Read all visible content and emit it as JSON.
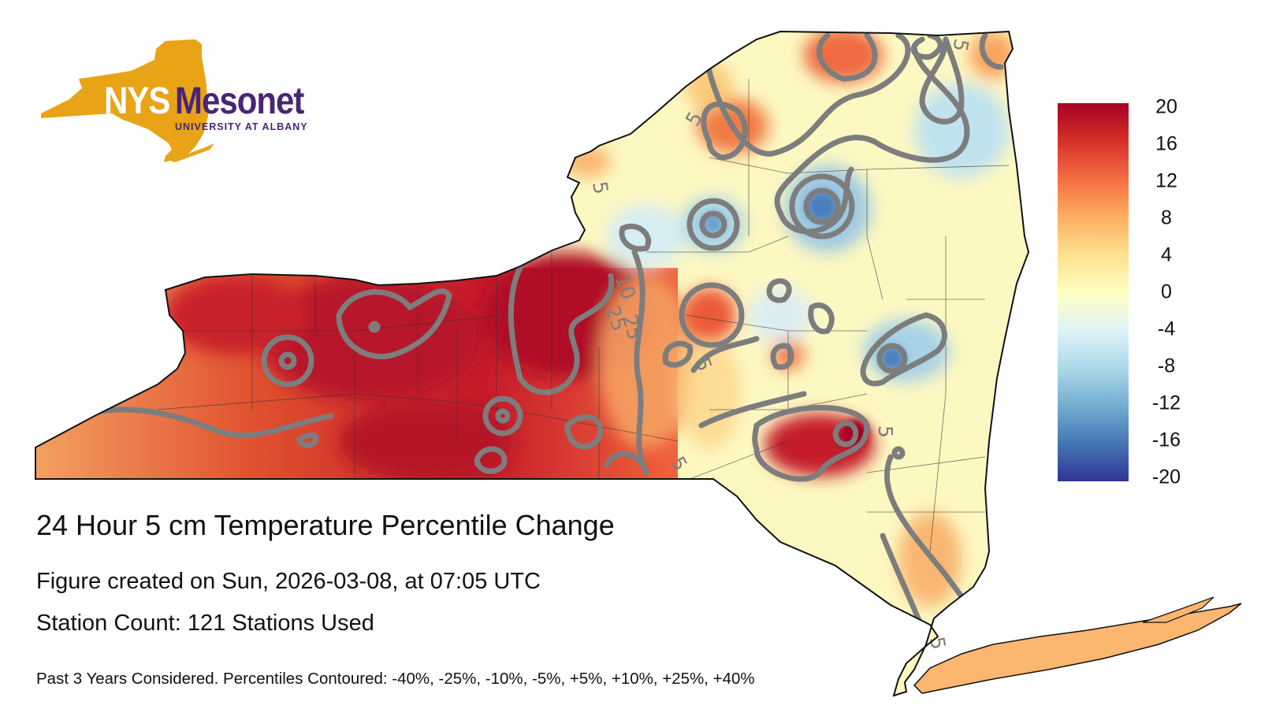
{
  "logo": {
    "nys_text": "NYS",
    "brand_text": "Mesonet",
    "subtitle": "UNIVERSITY AT ALBANY",
    "state_color": "#e8a317",
    "brand_color": "#4a2574"
  },
  "figure": {
    "title": "24 Hour 5 cm Temperature Percentile Change",
    "created": "Figure created on Sun, 2026-03-08, at 07:05 UTC",
    "station_count": "Station Count: 121 Stations Used",
    "footnote": "Past 3 Years Considered. Percentiles Contoured: -40%, -25%, -10%, -5%, +5%, +10%, +25%, +40%"
  },
  "colorbar": {
    "ticks": [
      "20",
      "16",
      "12",
      "8",
      "4",
      "0",
      "-4",
      "-8",
      "-12",
      "-16",
      "-20"
    ],
    "colors": [
      "#313695",
      "#4575b4",
      "#74add1",
      "#abd9e9",
      "#e0f3f8",
      "#ffffbf",
      "#fee090",
      "#fdae61",
      "#f46d43",
      "#d73027",
      "#a50026"
    ]
  },
  "contour_labels": [
    "5",
    "5",
    "10",
    "25",
    "25",
    "5",
    "5",
    "5",
    "5",
    "5"
  ]
}
